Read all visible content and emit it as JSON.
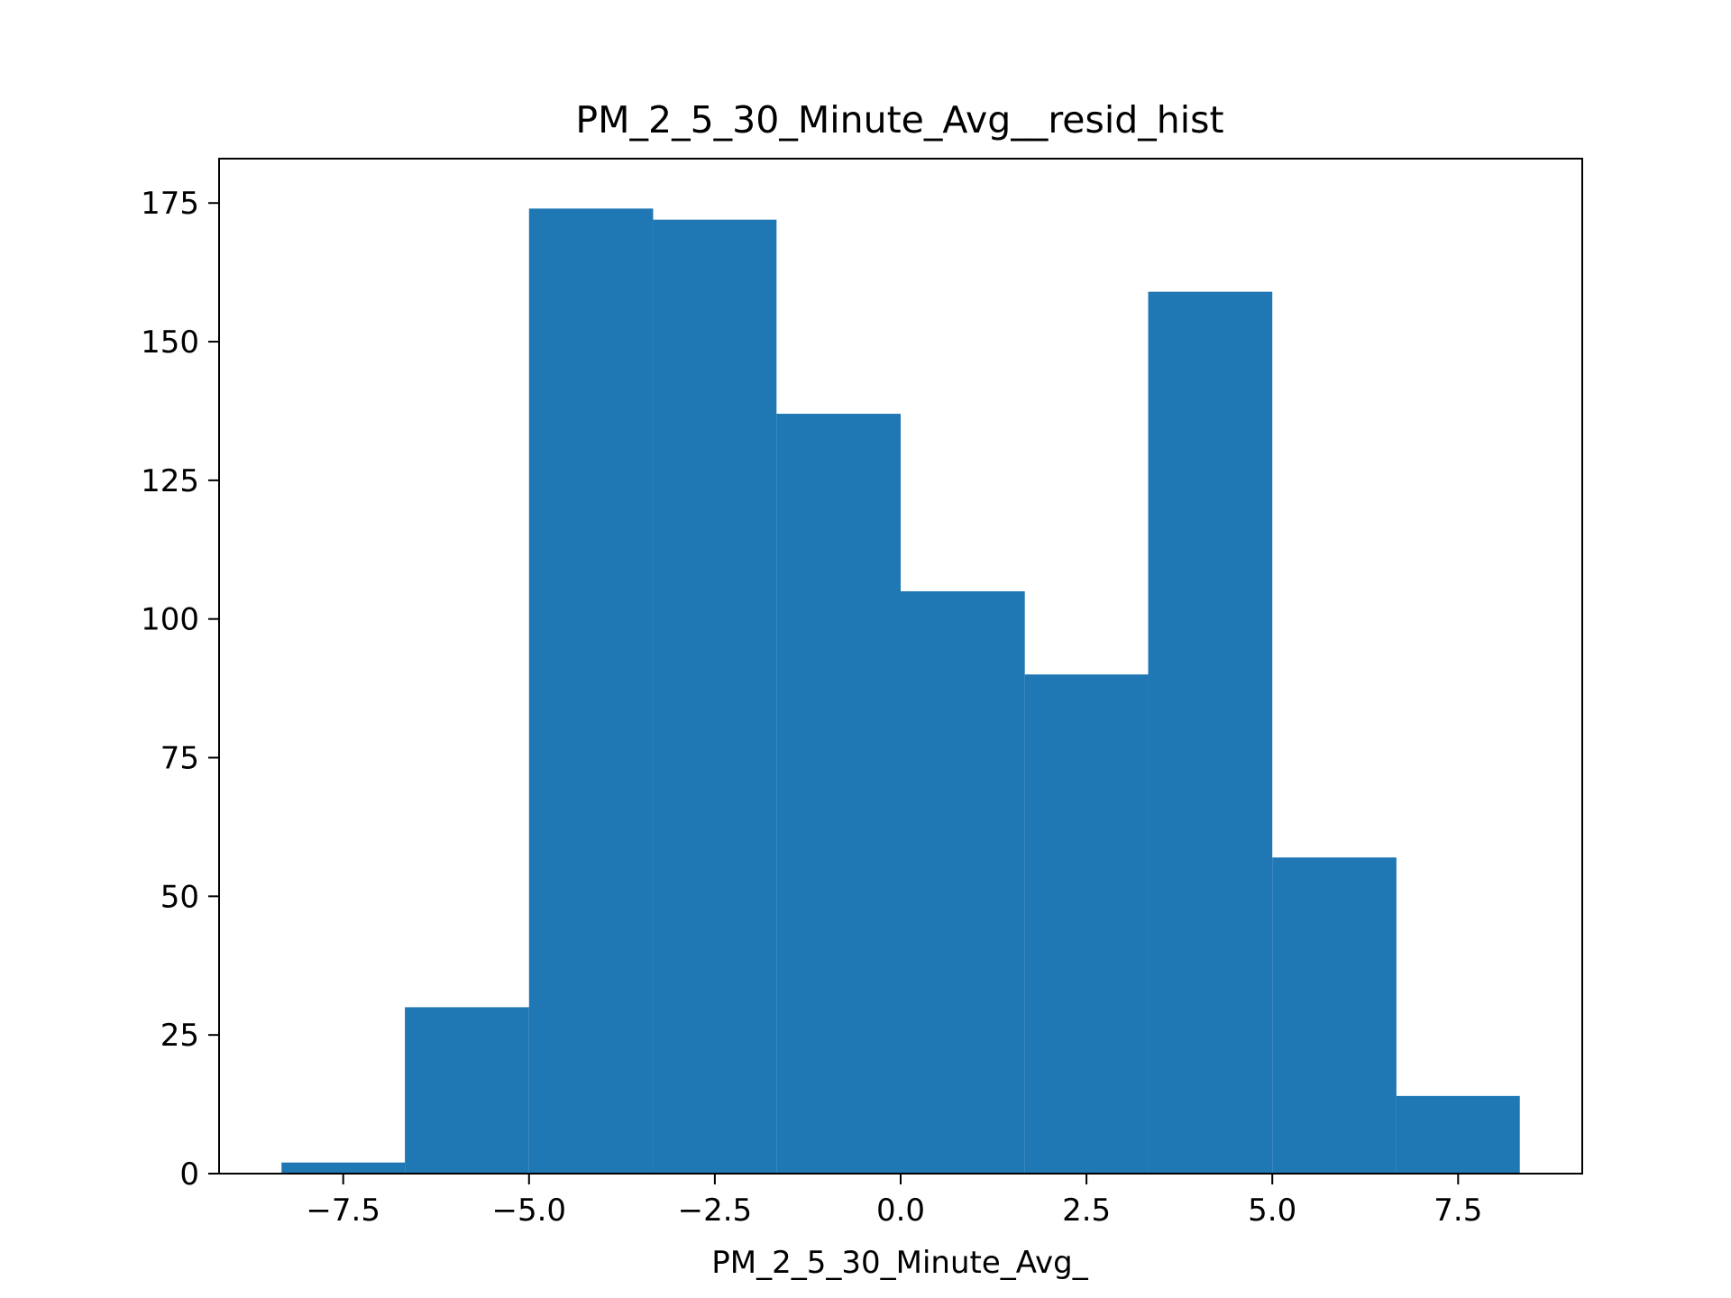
{
  "chart_data": {
    "type": "bar",
    "title": "PM_2_5_30_Minute_Avg__resid_hist",
    "xlabel": "PM_2_5_30_Minute_Avg_",
    "ylabel": "",
    "bin_edges": [
      -8.33,
      -6.67,
      -5.0,
      -3.33,
      -1.67,
      0.0,
      1.67,
      3.33,
      5.0,
      6.67,
      8.33
    ],
    "counts": [
      2,
      30,
      174,
      172,
      137,
      105,
      90,
      159,
      57,
      14
    ],
    "xlim": [
      -9.17,
      9.17
    ],
    "ylim": [
      0,
      183
    ],
    "xticks": [
      {
        "value": -7.5,
        "label": "−7.5"
      },
      {
        "value": -5.0,
        "label": "−5.0"
      },
      {
        "value": -2.5,
        "label": "−2.5"
      },
      {
        "value": 0.0,
        "label": "0.0"
      },
      {
        "value": 2.5,
        "label": "2.5"
      },
      {
        "value": 5.0,
        "label": "5.0"
      },
      {
        "value": 7.5,
        "label": "7.5"
      }
    ],
    "yticks": [
      {
        "value": 0,
        "label": "0"
      },
      {
        "value": 25,
        "label": "25"
      },
      {
        "value": 50,
        "label": "50"
      },
      {
        "value": 75,
        "label": "75"
      },
      {
        "value": 100,
        "label": "100"
      },
      {
        "value": 125,
        "label": "125"
      },
      {
        "value": 150,
        "label": "150"
      },
      {
        "value": 175,
        "label": "175"
      }
    ],
    "bar_color": "#1f77b4",
    "grid": false,
    "legend": "none"
  }
}
